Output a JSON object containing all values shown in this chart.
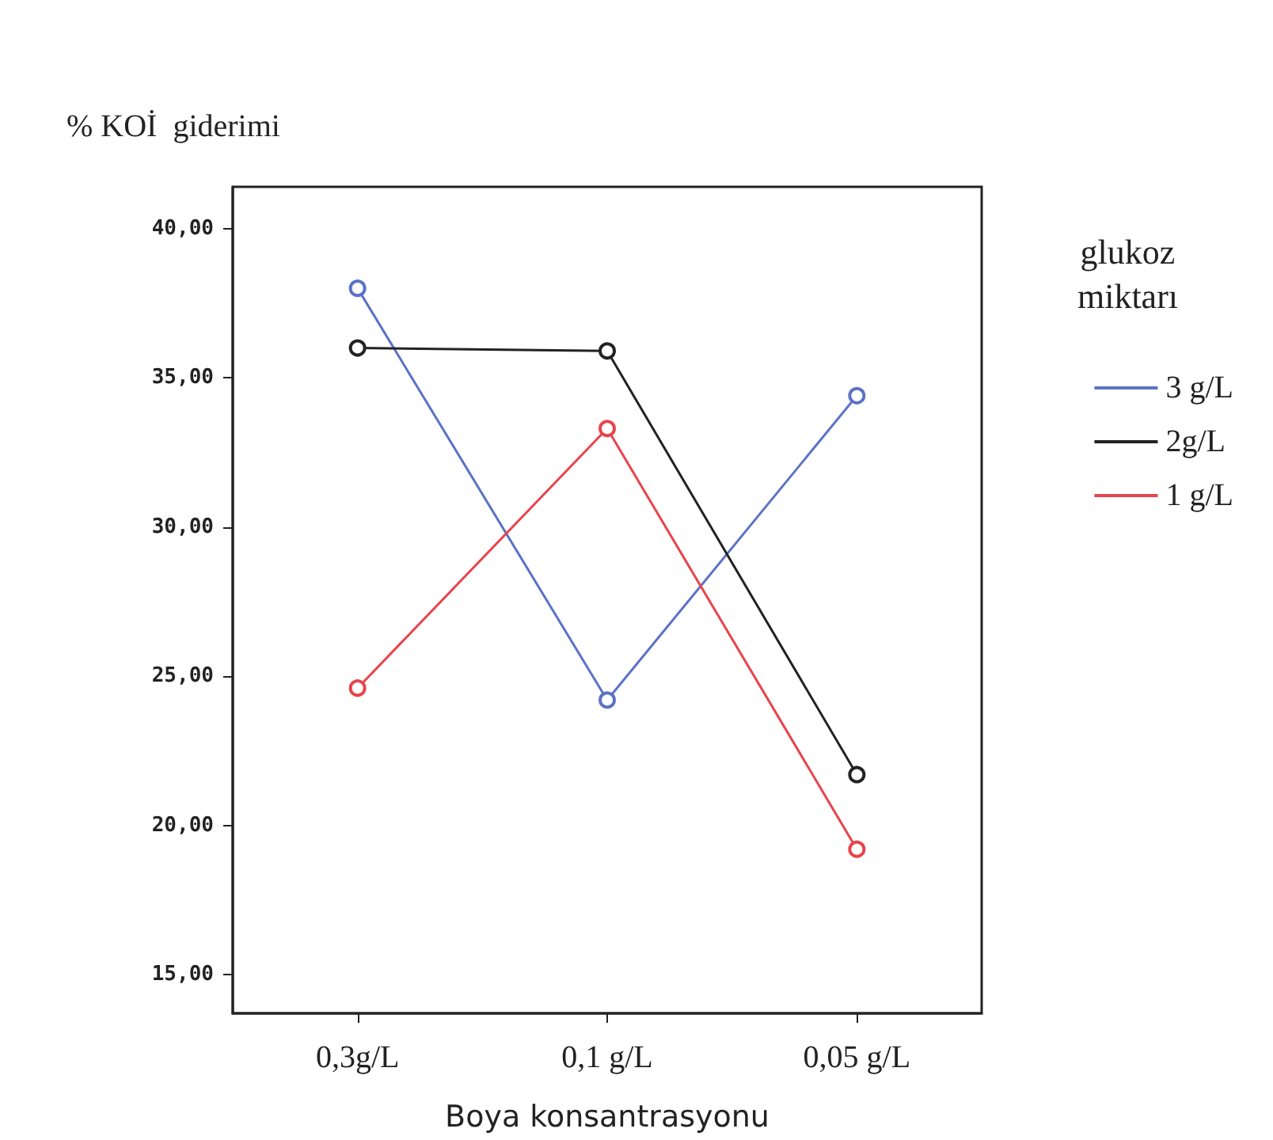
{
  "chart_data": {
    "type": "line",
    "ylabel": "% KOİ  giderimi",
    "xlabel": "Boya konsantrasyonu",
    "legend_title": "glukoz\nmiktarı",
    "categories": [
      "0,3g/L",
      "0,1 g/L",
      "0,05 g/L"
    ],
    "series": [
      {
        "name": "3 g/L",
        "color": "#5b72c6",
        "values": [
          38.0,
          24.2,
          34.4
        ]
      },
      {
        "name": "2g/L",
        "color": "#222222",
        "values": [
          36.0,
          35.9,
          21.7
        ]
      },
      {
        "name": "1 g/L",
        "color": "#e8444c",
        "values": [
          24.6,
          33.3,
          19.2
        ]
      }
    ],
    "ylim": [
      13.7,
      41.4
    ],
    "yticks": [
      {
        "value": 15,
        "label": "15,00"
      },
      {
        "value": 20,
        "label": "20,00"
      },
      {
        "value": 25,
        "label": "25,00"
      },
      {
        "value": 30,
        "label": "30,00"
      },
      {
        "value": 35,
        "label": "35,00"
      },
      {
        "value": 40,
        "label": "40,00"
      }
    ],
    "grid": false,
    "legend": "right",
    "marker": "circle",
    "line_style": "solid"
  }
}
